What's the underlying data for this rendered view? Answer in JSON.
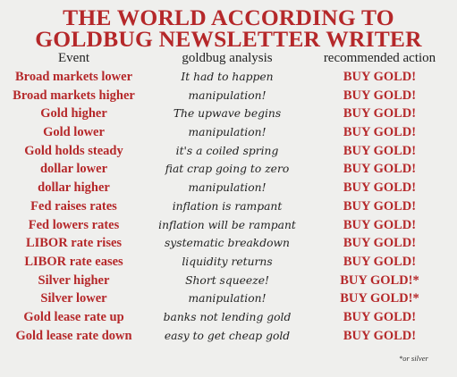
{
  "title": {
    "line1": "THE WORLD ACCORDING TO",
    "line2": "GOLDBUG NEWSLETTER WRITER"
  },
  "headers": {
    "event": "Event",
    "analysis": "goldbug analysis",
    "action": "recommended action"
  },
  "rows": [
    {
      "event": "Broad markets lower",
      "analysis": "It had to happen",
      "action": "BUY GOLD!"
    },
    {
      "event": "Broad markets higher",
      "analysis": "manipulation!",
      "action": "BUY GOLD!"
    },
    {
      "event": "Gold higher",
      "analysis": "The upwave begins",
      "action": "BUY GOLD!"
    },
    {
      "event": "Gold lower",
      "analysis": "manipulation!",
      "action": "BUY GOLD!"
    },
    {
      "event": "Gold holds steady",
      "analysis": "it's a coiled spring",
      "action": "BUY GOLD!"
    },
    {
      "event": "dollar lower",
      "analysis": "fiat crap going to zero",
      "action": "BUY GOLD!"
    },
    {
      "event": "dollar higher",
      "analysis": "manipulation!",
      "action": "BUY GOLD!"
    },
    {
      "event": "Fed raises rates",
      "analysis": "inflation is rampant",
      "action": "BUY GOLD!"
    },
    {
      "event": "Fed lowers rates",
      "analysis": "inflation will be rampant",
      "action": "BUY GOLD!"
    },
    {
      "event": "LIBOR rate rises",
      "analysis": "systematic breakdown",
      "action": "BUY GOLD!"
    },
    {
      "event": "LIBOR rate eases",
      "analysis": "liquidity returns",
      "action": "BUY GOLD!"
    },
    {
      "event": "Silver higher",
      "analysis": "Short squeeze!",
      "action": "BUY GOLD!*"
    },
    {
      "event": "Silver lower",
      "analysis": "manipulation!",
      "action": "BUY GOLD!*"
    },
    {
      "event": "Gold lease rate up",
      "analysis": "banks not lending gold",
      "action": "BUY GOLD!"
    },
    {
      "event": "Gold lease rate down",
      "analysis": "easy to get cheap gold",
      "action": "BUY GOLD!"
    }
  ],
  "footnote": "*or silver"
}
